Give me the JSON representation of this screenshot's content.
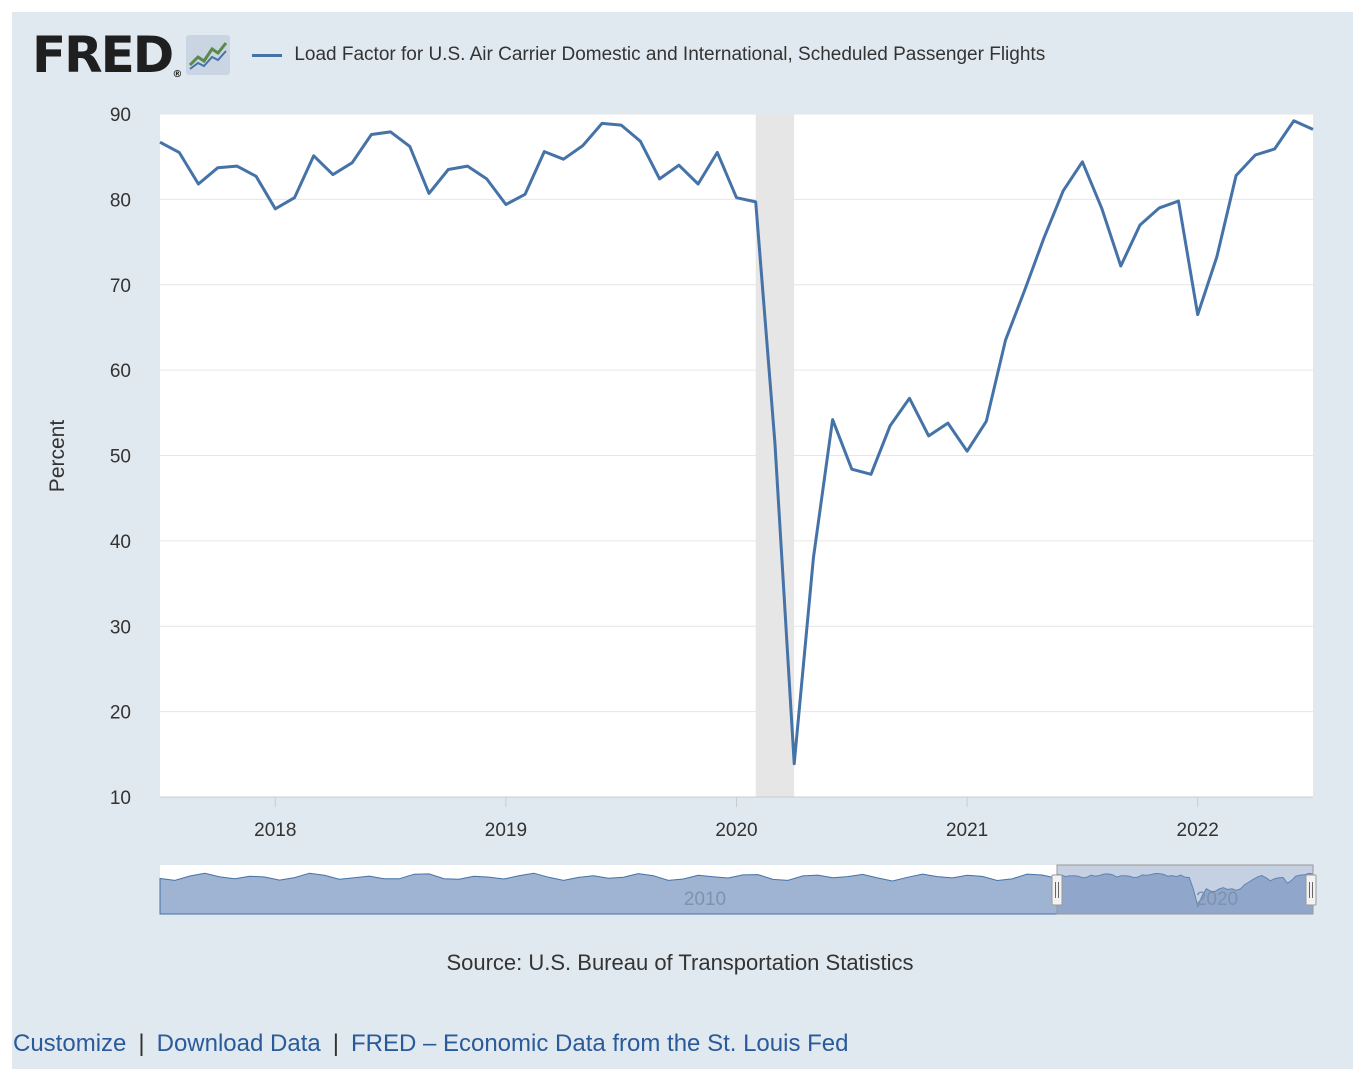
{
  "header": {
    "logo_text": "FRED",
    "logo_reg": "®",
    "legend_label": "Load Factor for U.S. Air Carrier Domestic and International, Scheduled Passenger Flights"
  },
  "colors": {
    "series": "#4572a7",
    "recession": "#e6e6e6",
    "frame": "#e1e9f0",
    "navigator_fill": "#9fb3d3",
    "navigator_selected": "#7f98c2"
  },
  "source": "Source: U.S. Bureau of Transportation Statistics",
  "footer": {
    "customize": "Customize",
    "sep1": "|",
    "download": "Download Data",
    "sep2": "|",
    "fred_link": "FRED – Economic Data from the St. Louis Fed"
  },
  "navigator": {
    "labels": [
      "2010",
      "2020"
    ]
  },
  "chart_data": {
    "type": "line",
    "title": "Load Factor for U.S. Air Carrier Domestic and International, Scheduled Passenger Flights",
    "ylabel": "Percent",
    "xlabel": "",
    "ylim": [
      10,
      90
    ],
    "yticks": [
      10,
      20,
      30,
      40,
      50,
      60,
      70,
      80,
      90
    ],
    "xticks": [
      "2018",
      "2019",
      "2020",
      "2021",
      "2022"
    ],
    "grid": true,
    "legend": "top",
    "recession": {
      "start": "2020-02",
      "end": "2020-04"
    },
    "series": [
      {
        "name": "Load Factor for U.S. Air Carrier Domestic and International, Scheduled Passenger Flights",
        "dates": [
          "2017-07",
          "2017-08",
          "2017-09",
          "2017-10",
          "2017-11",
          "2017-12",
          "2018-01",
          "2018-02",
          "2018-03",
          "2018-04",
          "2018-05",
          "2018-06",
          "2018-07",
          "2018-08",
          "2018-09",
          "2018-10",
          "2018-11",
          "2018-12",
          "2019-01",
          "2019-02",
          "2019-03",
          "2019-04",
          "2019-05",
          "2019-06",
          "2019-07",
          "2019-08",
          "2019-09",
          "2019-10",
          "2019-11",
          "2019-12",
          "2020-01",
          "2020-02",
          "2020-03",
          "2020-04",
          "2020-05",
          "2020-06",
          "2020-07",
          "2020-08",
          "2020-09",
          "2020-10",
          "2020-11",
          "2020-12",
          "2021-01",
          "2021-02",
          "2021-03",
          "2021-04",
          "2021-05",
          "2021-06",
          "2021-07",
          "2021-08",
          "2021-09",
          "2021-10",
          "2021-11",
          "2021-12",
          "2022-01",
          "2022-02",
          "2022-03",
          "2022-04",
          "2022-05",
          "2022-06",
          "2022-07"
        ],
        "values": [
          86.7,
          85.5,
          81.8,
          83.7,
          83.9,
          82.7,
          78.9,
          80.2,
          85.1,
          82.9,
          84.3,
          87.6,
          87.9,
          86.2,
          80.7,
          83.5,
          83.9,
          82.4,
          79.4,
          80.6,
          85.6,
          84.7,
          86.3,
          88.9,
          88.7,
          86.8,
          82.4,
          84.0,
          81.8,
          85.5,
          80.2,
          79.7,
          51.5,
          13.9,
          38.0,
          54.2,
          48.4,
          47.8,
          53.5,
          56.7,
          52.3,
          53.8,
          50.5,
          54.0,
          63.5,
          69.4,
          75.5,
          81.0,
          84.4,
          79.0,
          72.2,
          77.0,
          79.0,
          79.8,
          66.5,
          73.3,
          82.8,
          85.2,
          85.9,
          89.2,
          88.2
        ]
      }
    ]
  }
}
